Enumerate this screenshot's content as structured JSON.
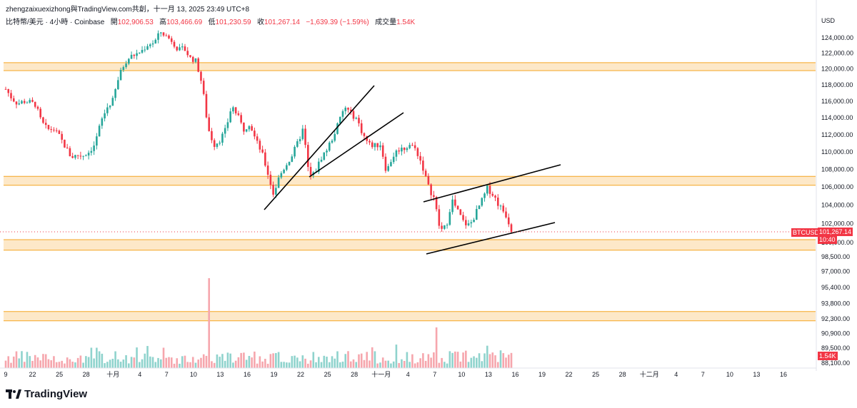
{
  "header": {
    "line1": "zhengzaixuexizhong與TradingView.com共創，十一月 13, 2025 23:49 UTC+8",
    "symbol": "比特幣/美元 · 4小時 · Coinbase",
    "open_label": "開",
    "open": "102,906.53",
    "high_label": "高",
    "high": "103,466.69",
    "low_label": "低",
    "low": "101,230.59",
    "close_label": "收",
    "close": "101,267.14",
    "change": "−1,639.39 (−1.59%)",
    "volume_label": "成交量",
    "volume": "1.54K"
  },
  "branding": {
    "logo_text": "TradingView"
  },
  "colors": {
    "up": "#26a69a",
    "down": "#f23645",
    "zone_fill": "#fde8c8",
    "zone_line": "#f5a623",
    "up_vol": "#8fd3cd",
    "down_vol": "#f6a6ad"
  },
  "chart_data": {
    "type": "candlestick",
    "symbol": "BTCUSD",
    "currency": "USD",
    "price_axis": {
      "unit": "USD",
      "ticks": [
        "124,000.00",
        "122,000.00",
        "120,000.00",
        "118,000.00",
        "116,000.00",
        "114,000.00",
        "112,000.00",
        "110,000.00",
        "108,000.00",
        "106,000.00",
        "104,000.00",
        "102,000.00",
        "100,000.00",
        "98,500.00",
        "97,000.00",
        "95,400.00",
        "93,800.00",
        "92,300.00",
        "90,900.00",
        "89,500.00",
        "88,100.00"
      ],
      "scale": "log"
    },
    "time_axis": {
      "ticks": [
        "9",
        "22",
        "25",
        "28",
        "十月",
        "4",
        "7",
        "10",
        "13",
        "16",
        "19",
        "22",
        "25",
        "28",
        "十一月",
        "4",
        "7",
        "10",
        "13",
        "16",
        "19",
        "22",
        "25",
        "28",
        "十二月",
        "4",
        "7",
        "10",
        "13",
        "16"
      ]
    },
    "last_price_label": {
      "symbol": "BTCUSD",
      "price": "101,267.14",
      "countdown": "10:40"
    },
    "volume_label": "1.54K",
    "zones": [
      {
        "low": 119800,
        "high": 120800
      },
      {
        "low": 106200,
        "high": 107200
      },
      {
        "low": 99200,
        "high": 100300
      },
      {
        "low": 92100,
        "high": 93000
      }
    ],
    "trend_lines": [
      {
        "from": [
          "9/17",
          103700
        ],
        "to": [
          "9/28",
          118300
        ]
      },
      {
        "from": [
          "9/22",
          106900
        ],
        "to": [
          "10/1",
          114900
        ]
      },
      {
        "from": [
          "11/4",
          104700
        ],
        "to": [
          "11/20",
          108800
        ]
      },
      {
        "from": [
          "11/4",
          98900
        ],
        "to": [
          "11/19",
          102300
        ]
      }
    ],
    "price_path": [
      [
        "9/9",
        117500
      ],
      [
        "9/10",
        116400
      ],
      [
        "9/11",
        115700
      ],
      [
        "9/12",
        116000
      ],
      [
        "9/13",
        115900
      ],
      [
        "9/14",
        115600
      ],
      [
        "9/15",
        113500
      ],
      [
        "9/16",
        112600
      ],
      [
        "9/17",
        112700
      ],
      [
        "9/18",
        111800
      ],
      [
        "9/19",
        110600
      ],
      [
        "9/20",
        109400
      ],
      [
        "9/21",
        109600
      ],
      [
        "9/22",
        109600
      ],
      [
        "9/23",
        110000
      ],
      [
        "9/24",
        110900
      ],
      [
        "9/25",
        113500
      ],
      [
        "9/26",
        115200
      ],
      [
        "9/27",
        116100
      ],
      [
        "9/28",
        119000
      ],
      [
        "9/29",
        120800
      ],
      [
        "9/30",
        121600
      ],
      [
        "10/1",
        121900
      ],
      [
        "10/2",
        122400
      ],
      [
        "10/3",
        123200
      ],
      [
        "10/4",
        123400
      ],
      [
        "10/5",
        124800
      ],
      [
        "10/6",
        124200
      ],
      [
        "10/7",
        123600
      ],
      [
        "10/8",
        122400
      ],
      [
        "10/9",
        122600
      ],
      [
        "10/10",
        121400
      ],
      [
        "10/11",
        121000
      ],
      [
        "10/12",
        118100
      ],
      [
        "10/12b",
        112800
      ],
      [
        "10/13",
        110800
      ],
      [
        "10/14",
        111400
      ],
      [
        "10/15",
        112600
      ],
      [
        "10/16",
        115500
      ],
      [
        "10/17",
        114200
      ],
      [
        "10/18",
        112600
      ],
      [
        "10/19",
        113400
      ],
      [
        "10/20",
        111400
      ],
      [
        "10/21",
        110000
      ],
      [
        "10/22",
        107700
      ],
      [
        "10/23",
        105200
      ],
      [
        "10/24",
        107200
      ],
      [
        "10/25",
        108400
      ],
      [
        "10/26",
        109400
      ],
      [
        "10/27",
        110900
      ],
      [
        "10/28",
        112700
      ],
      [
        "10/29",
        107100
      ],
      [
        "10/30",
        107600
      ],
      [
        "10/31",
        109300
      ],
      [
        "11/1",
        110300
      ],
      [
        "11/2",
        111700
      ],
      [
        "11/3",
        113500
      ],
      [
        "11/4",
        115300
      ],
      [
        "11/5",
        114500
      ],
      [
        "11/6",
        113900
      ],
      [
        "11/7",
        112100
      ],
      [
        "11/8",
        110900
      ],
      [
        "11/9",
        110700
      ],
      [
        "11/10",
        110900
      ],
      [
        "11/11",
        107700
      ],
      [
        "11/12",
        109400
      ],
      [
        "11/13",
        110300
      ],
      [
        "11/14",
        110400
      ],
      [
        "11/15",
        110900
      ],
      [
        "11/16",
        110200
      ],
      [
        "11/17",
        108500
      ],
      [
        "11/18",
        106100
      ],
      [
        "11/19",
        104800
      ],
      [
        "11/20",
        101300
      ],
      [
        "11/21",
        101600
      ],
      [
        "11/22",
        104600
      ],
      [
        "11/23",
        103300
      ],
      [
        "11/24",
        102100
      ],
      [
        "11/25",
        101800
      ],
      [
        "11/26",
        103100
      ],
      [
        "11/27",
        104400
      ],
      [
        "11/28",
        105900
      ],
      [
        "11/29",
        105100
      ],
      [
        "11/30",
        103900
      ],
      [
        "12/1",
        103100
      ],
      [
        "12/2",
        101400
      ]
    ]
  }
}
